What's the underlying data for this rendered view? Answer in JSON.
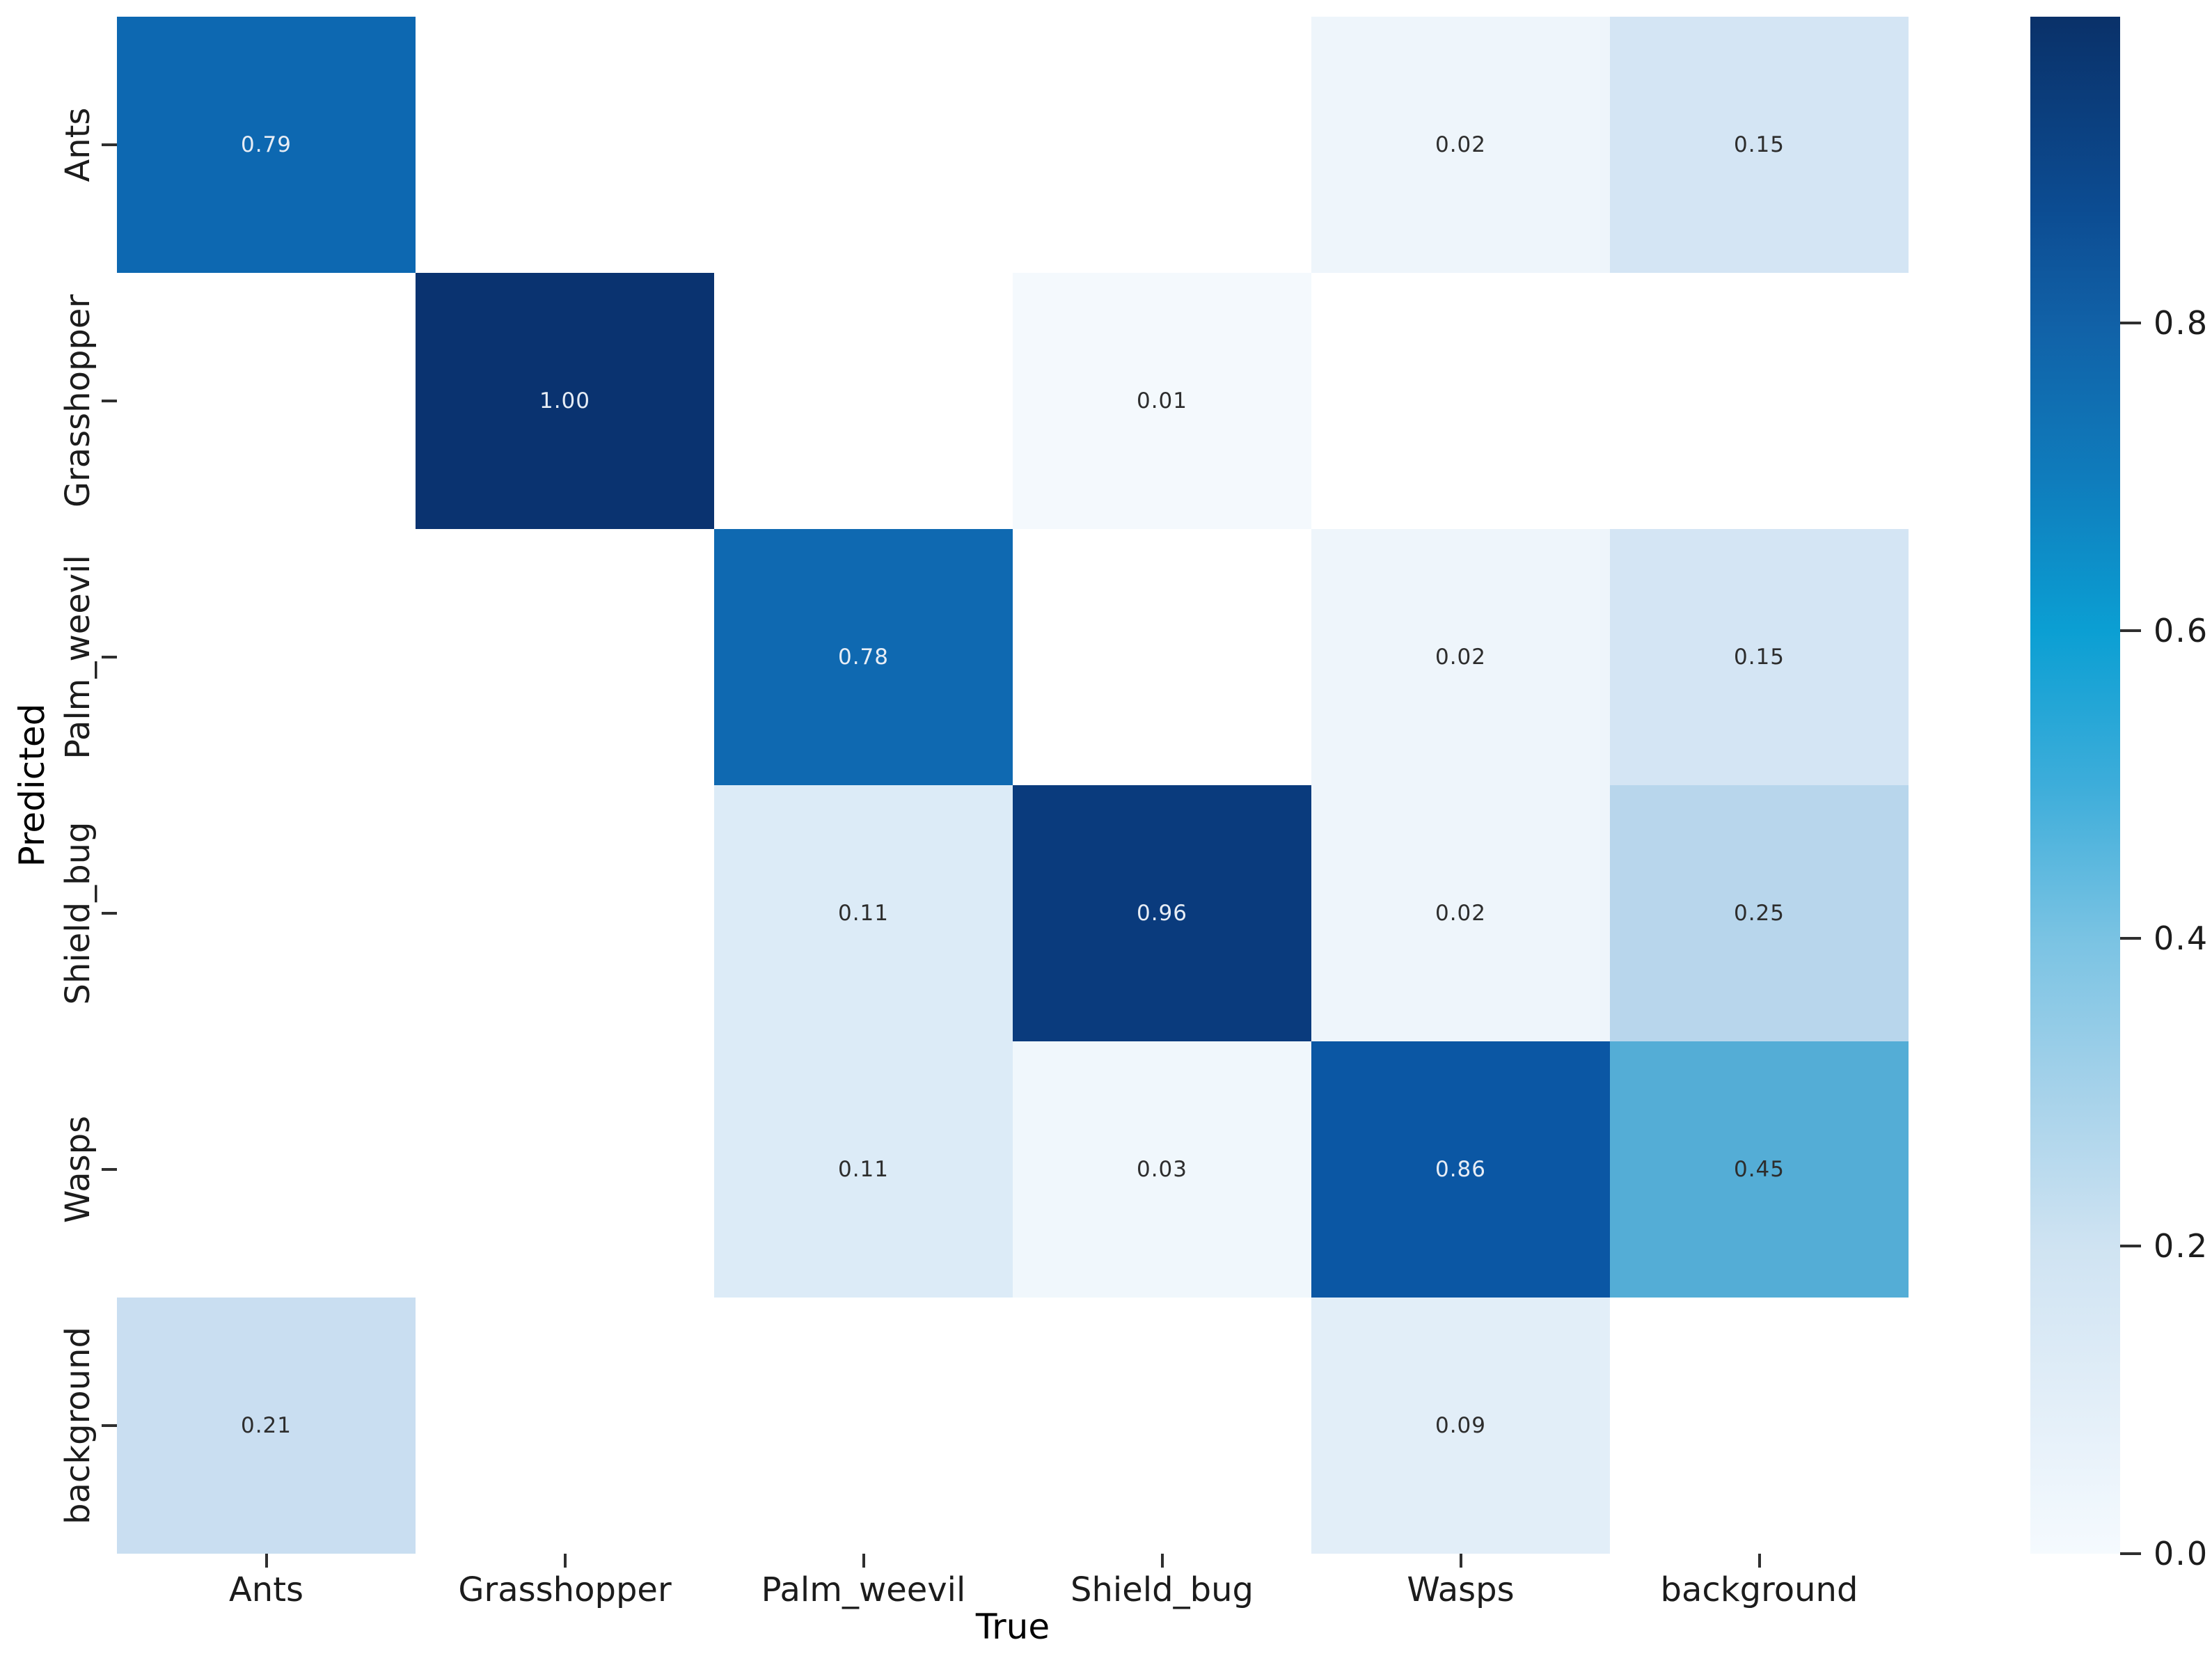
{
  "figure": {
    "background": "#ffffff"
  },
  "chart_data": {
    "type": "heatmap",
    "title": "",
    "xlabel": "True",
    "ylabel": "Predicted",
    "x_categories": [
      "Ants",
      "Grasshopper",
      "Palm_weevil",
      "Shield_bug",
      "Wasps",
      "background"
    ],
    "y_categories": [
      "Ants",
      "Grasshopper",
      "Palm_weevil",
      "Shield_bug",
      "Wasps",
      "background"
    ],
    "matrix": [
      [
        0.79,
        null,
        null,
        null,
        0.02,
        0.15
      ],
      [
        null,
        1.0,
        null,
        0.01,
        null,
        null
      ],
      [
        null,
        null,
        0.78,
        null,
        0.02,
        0.15
      ],
      [
        null,
        null,
        0.11,
        0.96,
        0.02,
        0.25
      ],
      [
        null,
        null,
        0.11,
        0.03,
        0.86,
        0.45
      ],
      [
        0.21,
        null,
        null,
        null,
        0.09,
        null
      ]
    ],
    "value_format_decimals": 2,
    "empty_cell_color": "#ffffff",
    "value_colors": {
      "0.01": "#f4f9fd",
      "0.02": "#eef5fb",
      "0.03": "#f0f7fc",
      "0.09": "#e2eef8",
      "0.11": "#dcebf7",
      "0.15": "#d4e5f4",
      "0.21": "#c9def1",
      "0.25": "#b8d6ec",
      "0.45": "#54add6",
      "0.78": "#0f69b1",
      "0.79": "#0d68b1",
      "0.86": "#0b57a4",
      "0.96": "#0a3b7d",
      "1.00": "#0a3370"
    },
    "annotation_text_light": "#e7edf5",
    "annotation_text_dark": "#2d2d2d",
    "light_text_threshold": 0.7,
    "grid_on": false,
    "colorbar": {
      "position": "right",
      "vmin": 0.0,
      "vmax": 1.0,
      "tick_labels": [
        "0.8",
        "0.6",
        "0.4",
        "0.2",
        "0.0"
      ],
      "tick_values": [
        0.8,
        0.6,
        0.4,
        0.2,
        0.0
      ],
      "gradient_stops": [
        {
          "v": 0.0,
          "c": "#f5fafe"
        },
        {
          "v": 0.1,
          "c": "#e2eef8"
        },
        {
          "v": 0.2,
          "c": "#cfe3f2"
        },
        {
          "v": 0.3,
          "c": "#a6d2ea"
        },
        {
          "v": 0.4,
          "c": "#7ac3e3"
        },
        {
          "v": 0.5,
          "c": "#3dadda"
        },
        {
          "v": 0.6,
          "c": "#0b9fd3"
        },
        {
          "v": 0.7,
          "c": "#0f7cbc"
        },
        {
          "v": 0.8,
          "c": "#1161a7"
        },
        {
          "v": 0.875,
          "c": "#0c4c92"
        },
        {
          "v": 1.0,
          "c": "#0a3169"
        }
      ]
    }
  }
}
